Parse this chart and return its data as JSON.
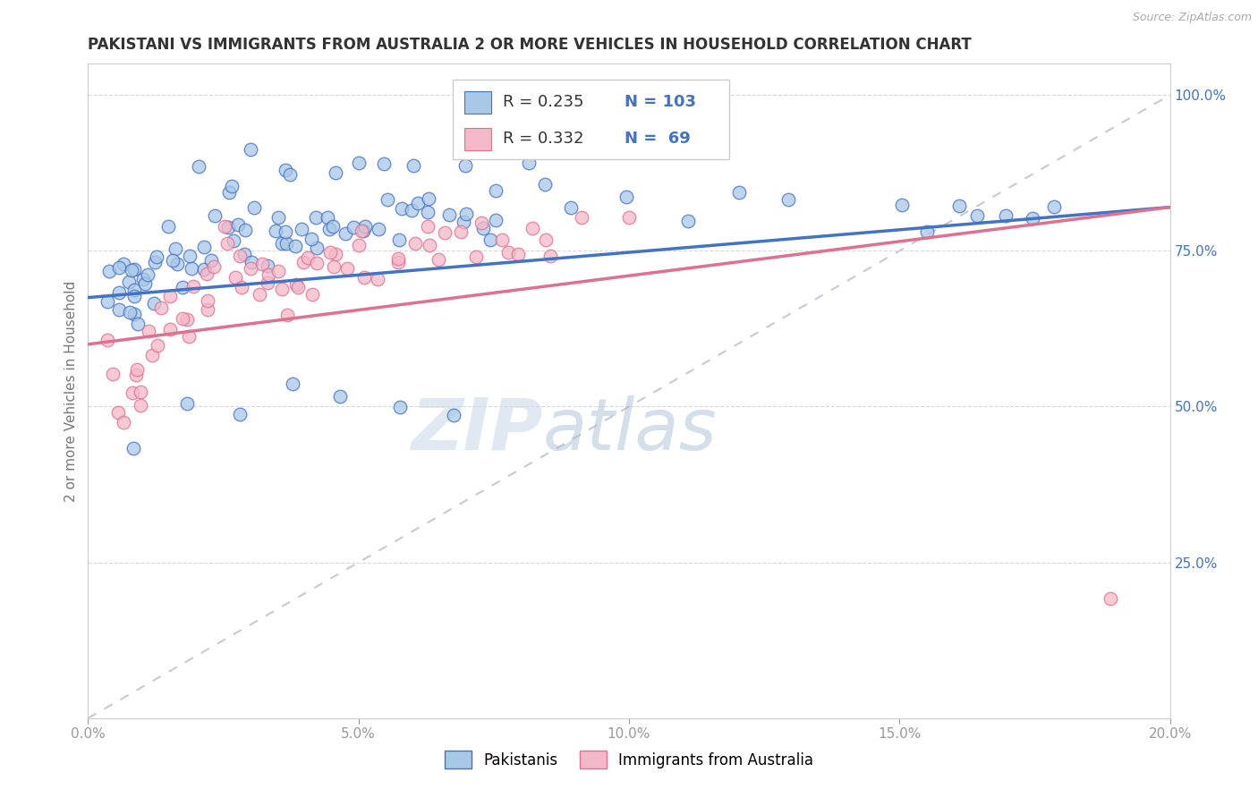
{
  "title": "PAKISTANI VS IMMIGRANTS FROM AUSTRALIA 2 OR MORE VEHICLES IN HOUSEHOLD CORRELATION CHART",
  "source": "Source: ZipAtlas.com",
  "ylabel": "2 or more Vehicles in Household",
  "x_min": 0.0,
  "x_max": 0.2,
  "y_min": 0.0,
  "y_max": 1.05,
  "right_yticks": [
    0.25,
    0.5,
    0.75,
    1.0
  ],
  "right_yticklabels": [
    "25.0%",
    "50.0%",
    "75.0%",
    "100.0%"
  ],
  "xticks": [
    0.0,
    0.05,
    0.1,
    0.15,
    0.2
  ],
  "xticklabels": [
    "0.0%",
    "5.0%",
    "10.0%",
    "15.0%",
    "20.0%"
  ],
  "blue_R": 0.235,
  "blue_N": 103,
  "pink_R": 0.332,
  "pink_N": 69,
  "blue_color": "#a8c8e8",
  "pink_color": "#f4b8c8",
  "blue_line_color": "#4472c4",
  "pink_line_color": "#e07090",
  "ref_line_color": "#c8c8d8",
  "legend_text_color": "#4472c4",
  "watermark": "ZIPatlas",
  "legend_label_blue": "Pakistanis",
  "legend_label_pink": "Immigrants from Australia",
  "blue_scatter_x": [
    0.003,
    0.004,
    0.005,
    0.005,
    0.006,
    0.006,
    0.007,
    0.007,
    0.008,
    0.008,
    0.009,
    0.009,
    0.01,
    0.01,
    0.011,
    0.011,
    0.012,
    0.012,
    0.013,
    0.014,
    0.015,
    0.015,
    0.016,
    0.017,
    0.018,
    0.019,
    0.02,
    0.021,
    0.022,
    0.023,
    0.024,
    0.025,
    0.026,
    0.027,
    0.028,
    0.029,
    0.03,
    0.031,
    0.032,
    0.033,
    0.034,
    0.035,
    0.036,
    0.037,
    0.038,
    0.039,
    0.04,
    0.041,
    0.042,
    0.043,
    0.044,
    0.045,
    0.046,
    0.047,
    0.048,
    0.05,
    0.052,
    0.054,
    0.055,
    0.057,
    0.058,
    0.06,
    0.062,
    0.064,
    0.066,
    0.068,
    0.07,
    0.072,
    0.074,
    0.076,
    0.02,
    0.025,
    0.03,
    0.035,
    0.04,
    0.045,
    0.05,
    0.055,
    0.06,
    0.065,
    0.07,
    0.075,
    0.08,
    0.085,
    0.09,
    0.1,
    0.11,
    0.12,
    0.13,
    0.15,
    0.155,
    0.16,
    0.165,
    0.17,
    0.175,
    0.18,
    0.008,
    0.018,
    0.028,
    0.038,
    0.048,
    0.058,
    0.068
  ],
  "blue_scatter_y": [
    0.68,
    0.72,
    0.65,
    0.7,
    0.68,
    0.72,
    0.65,
    0.68,
    0.7,
    0.72,
    0.65,
    0.68,
    0.7,
    0.72,
    0.65,
    0.68,
    0.7,
    0.72,
    0.68,
    0.72,
    0.75,
    0.78,
    0.72,
    0.75,
    0.7,
    0.72,
    0.75,
    0.78,
    0.72,
    0.75,
    0.8,
    0.78,
    0.82,
    0.8,
    0.75,
    0.78,
    0.75,
    0.78,
    0.8,
    0.75,
    0.78,
    0.8,
    0.75,
    0.78,
    0.8,
    0.75,
    0.78,
    0.8,
    0.75,
    0.78,
    0.8,
    0.78,
    0.8,
    0.75,
    0.78,
    0.8,
    0.78,
    0.8,
    0.82,
    0.8,
    0.78,
    0.8,
    0.82,
    0.8,
    0.78,
    0.8,
    0.82,
    0.8,
    0.78,
    0.8,
    0.88,
    0.85,
    0.9,
    0.88,
    0.85,
    0.88,
    0.85,
    0.88,
    0.9,
    0.85,
    0.88,
    0.85,
    0.88,
    0.85,
    0.82,
    0.85,
    0.82,
    0.85,
    0.82,
    0.82,
    0.8,
    0.82,
    0.8,
    0.82,
    0.8,
    0.82,
    0.45,
    0.5,
    0.48,
    0.52,
    0.5,
    0.52,
    0.5
  ],
  "pink_scatter_x": [
    0.003,
    0.004,
    0.005,
    0.005,
    0.006,
    0.007,
    0.008,
    0.009,
    0.01,
    0.011,
    0.012,
    0.013,
    0.014,
    0.015,
    0.016,
    0.017,
    0.018,
    0.019,
    0.02,
    0.021,
    0.022,
    0.023,
    0.024,
    0.025,
    0.026,
    0.027,
    0.028,
    0.029,
    0.03,
    0.031,
    0.032,
    0.033,
    0.034,
    0.035,
    0.036,
    0.037,
    0.038,
    0.039,
    0.04,
    0.041,
    0.042,
    0.043,
    0.044,
    0.045,
    0.046,
    0.047,
    0.048,
    0.05,
    0.052,
    0.054,
    0.056,
    0.058,
    0.06,
    0.062,
    0.064,
    0.066,
    0.068,
    0.07,
    0.072,
    0.074,
    0.076,
    0.078,
    0.08,
    0.082,
    0.084,
    0.086,
    0.09,
    0.1,
    0.19
  ],
  "pink_scatter_y": [
    0.6,
    0.55,
    0.5,
    0.55,
    0.48,
    0.52,
    0.55,
    0.5,
    0.52,
    0.55,
    0.65,
    0.6,
    0.65,
    0.62,
    0.65,
    0.68,
    0.62,
    0.65,
    0.68,
    0.65,
    0.68,
    0.7,
    0.72,
    0.75,
    0.78,
    0.72,
    0.75,
    0.68,
    0.72,
    0.68,
    0.72,
    0.68,
    0.72,
    0.68,
    0.72,
    0.65,
    0.68,
    0.72,
    0.68,
    0.72,
    0.68,
    0.72,
    0.75,
    0.72,
    0.75,
    0.72,
    0.75,
    0.72,
    0.75,
    0.72,
    0.75,
    0.72,
    0.75,
    0.78,
    0.75,
    0.78,
    0.75,
    0.78,
    0.75,
    0.78,
    0.75,
    0.78,
    0.75,
    0.78,
    0.75,
    0.78,
    0.8,
    0.8,
    0.2
  ],
  "blue_trend_x0": 0.0,
  "blue_trend_y0": 0.675,
  "blue_trend_x1": 0.2,
  "blue_trend_y1": 0.82,
  "pink_trend_x0": 0.0,
  "pink_trend_y0": 0.6,
  "pink_trend_x1": 0.2,
  "pink_trend_y1": 0.82
}
